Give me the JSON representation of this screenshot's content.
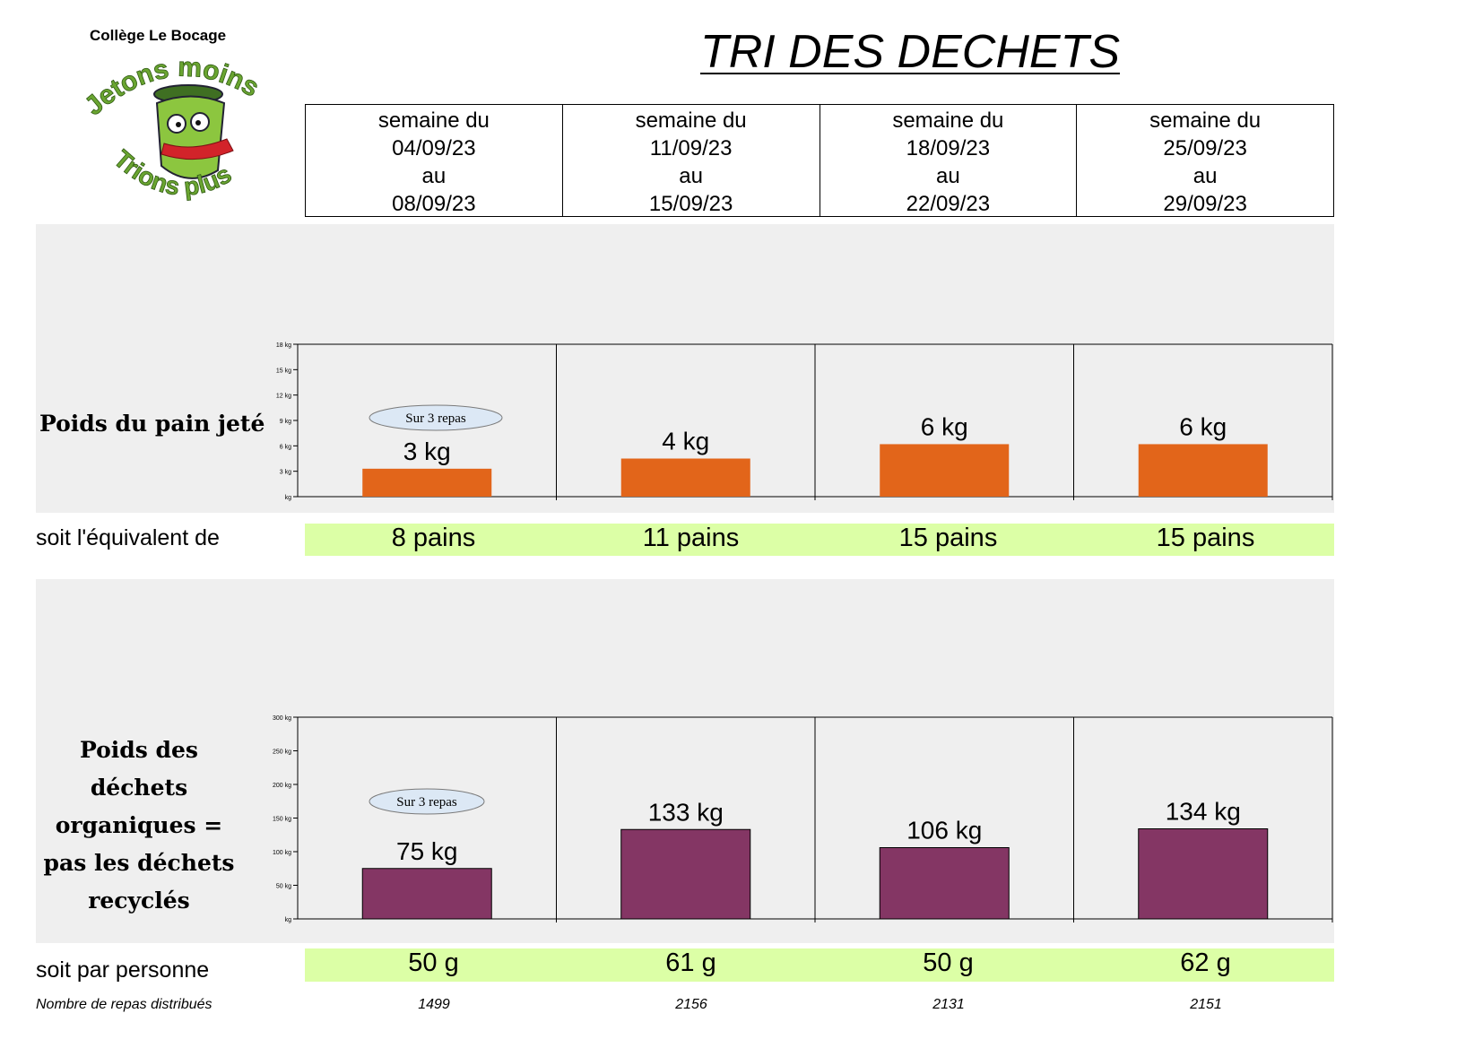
{
  "header": {
    "school": "Collège Le Bocage",
    "logo_text_top": "Jetons moins",
    "logo_text_bottom": "Trions plus",
    "title": "TRI DES DECHETS"
  },
  "weeks": [
    {
      "line1": "semaine du",
      "from": "04/09/23",
      "line3": "au",
      "to": "08/09/23"
    },
    {
      "line1": "semaine du",
      "from": "11/09/23",
      "line3": "au",
      "to": "15/09/23"
    },
    {
      "line1": "semaine du",
      "from": "18/09/23",
      "line3": "au",
      "to": "22/09/23"
    },
    {
      "line1": "semaine du",
      "from": "25/09/23",
      "line3": "au",
      "to": "29/09/23"
    }
  ],
  "bread": {
    "label": "Poids du pain jeté",
    "equivalent_label": "soit l'équivalent de",
    "equivalents": [
      "8 pains",
      "11 pains",
      "15 pains",
      "15 pains"
    ]
  },
  "organic": {
    "label_lines": [
      "Poids des",
      "déchets",
      "organiques =",
      "pas les déchets",
      "recyclés"
    ],
    "per_person_label": "soit par personne",
    "per_person": [
      "50 g",
      "61 g",
      "50 g",
      "62 g"
    ]
  },
  "meals": {
    "label": "Nombre de repas distribués",
    "values": [
      "1499",
      "2156",
      "2131",
      "2151"
    ]
  },
  "chart_data": [
    {
      "type": "bar",
      "categories": [
        "04/09/23",
        "11/09/23",
        "18/09/23",
        "25/09/23"
      ],
      "values": [
        3.3,
        4.5,
        6.2,
        6.2
      ],
      "data_labels": [
        "3 kg",
        "4 kg",
        "6 kg",
        "6 kg"
      ],
      "annotation": "Sur 3 repas",
      "yticks": [
        "kg",
        "3 kg",
        "6 kg",
        "9 kg",
        "12 kg",
        "15 kg",
        "18 kg"
      ],
      "ylim": [
        0,
        18
      ],
      "color": "#e2651a"
    },
    {
      "type": "bar",
      "categories": [
        "04/09/23",
        "11/09/23",
        "18/09/23",
        "25/09/23"
      ],
      "values": [
        75,
        133,
        106,
        134
      ],
      "data_labels": [
        "75 kg",
        "133 kg",
        "106 kg",
        "134 kg"
      ],
      "annotation": "Sur 3 repas",
      "yticks": [
        "kg",
        "50 kg",
        "100 kg",
        "150 kg",
        "200 kg",
        "250 kg",
        "300 kg"
      ],
      "ylim": [
        0,
        300
      ],
      "color": "#843664"
    }
  ]
}
